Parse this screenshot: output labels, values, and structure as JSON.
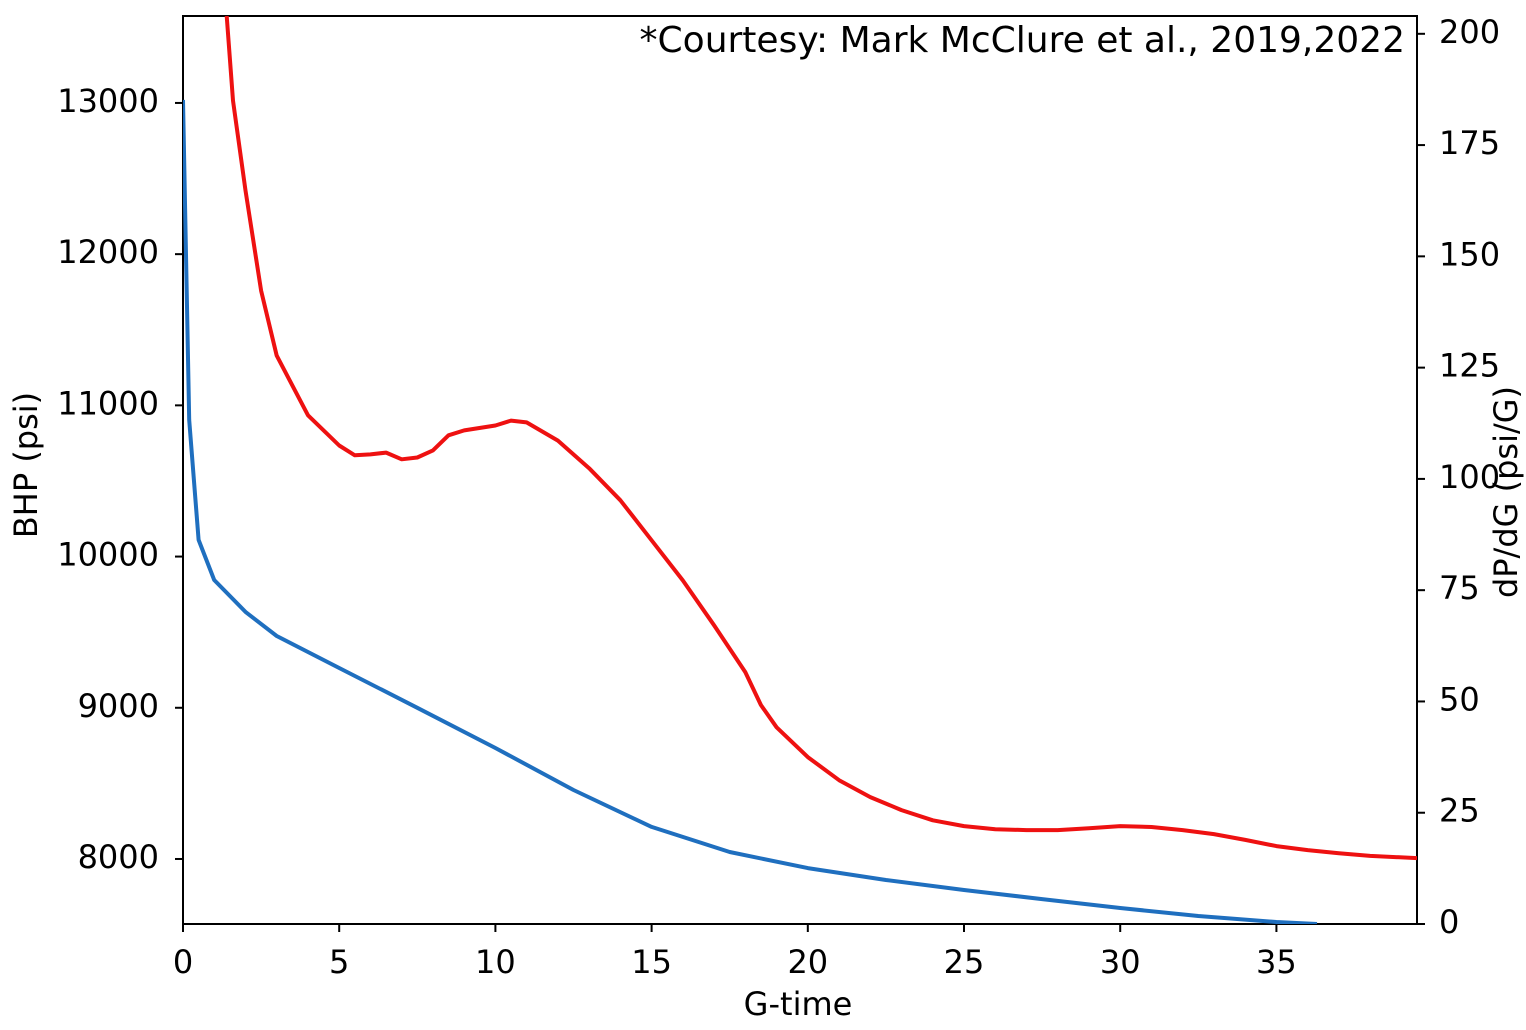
{
  "chart_data": {
    "type": "line",
    "annotation": "*Courtesy: Mark McClure et al., 2019,2022",
    "xlabel": "G-time",
    "ylabel": "BHP (psi)",
    "y2label": "dP/dG (psi/G)",
    "xlim": [
      0,
      39.5
    ],
    "xticks": [
      0,
      5,
      10,
      15,
      20,
      25,
      30,
      35
    ],
    "ylim": [
      7570,
      13575
    ],
    "yticks": [
      8000,
      9000,
      10000,
      11000,
      12000,
      13000
    ],
    "y2lim": [
      0,
      204
    ],
    "y2ticks": [
      0,
      25,
      50,
      75,
      100,
      125,
      150,
      175,
      200
    ],
    "series": [
      {
        "name": "BHP",
        "color": "#1f6fbf",
        "axis": "y",
        "x": [
          0,
          0.2,
          0.5,
          1,
          2,
          3,
          5,
          7.5,
          10,
          12.5,
          15,
          17.5,
          20,
          22.5,
          25,
          27.5,
          30,
          32.5,
          35,
          36.3
        ],
        "values": [
          13020,
          10903,
          10110,
          9845,
          9634,
          9475,
          9263,
          9000,
          8734,
          8456,
          8212,
          8046,
          7940,
          7861,
          7795,
          7735,
          7676,
          7623,
          7583,
          7570
        ]
      },
      {
        "name": "dP/dG",
        "color": "#ee1111",
        "axis": "y2",
        "x": [
          1.4,
          1.6,
          2,
          2.5,
          3,
          4,
          5,
          5.5,
          6,
          6.5,
          7,
          7.5,
          8,
          8.5,
          9,
          10,
          10.5,
          11,
          12,
          13,
          14,
          15,
          16,
          17,
          18,
          18.5,
          19,
          20,
          21,
          22,
          23,
          24,
          25,
          26,
          27,
          28,
          29,
          30,
          31,
          32,
          33,
          34,
          35,
          36,
          37,
          38,
          39.5
        ],
        "values": [
          204,
          185,
          164.8,
          142.3,
          127.7,
          114.3,
          107.5,
          105.3,
          105.5,
          105.9,
          104.4,
          104.8,
          106.4,
          109.8,
          110.9,
          112,
          113.1,
          112.7,
          108.6,
          102.4,
          95.2,
          86.2,
          77.2,
          67.1,
          56.6,
          49.2,
          44.2,
          37.5,
          32.3,
          28.5,
          25.6,
          23.3,
          22,
          21.3,
          21.1,
          21.1,
          21.5,
          22,
          21.8,
          21.1,
          20.2,
          18.9,
          17.5,
          16.6,
          15.9,
          15.3,
          14.8
        ]
      }
    ]
  }
}
